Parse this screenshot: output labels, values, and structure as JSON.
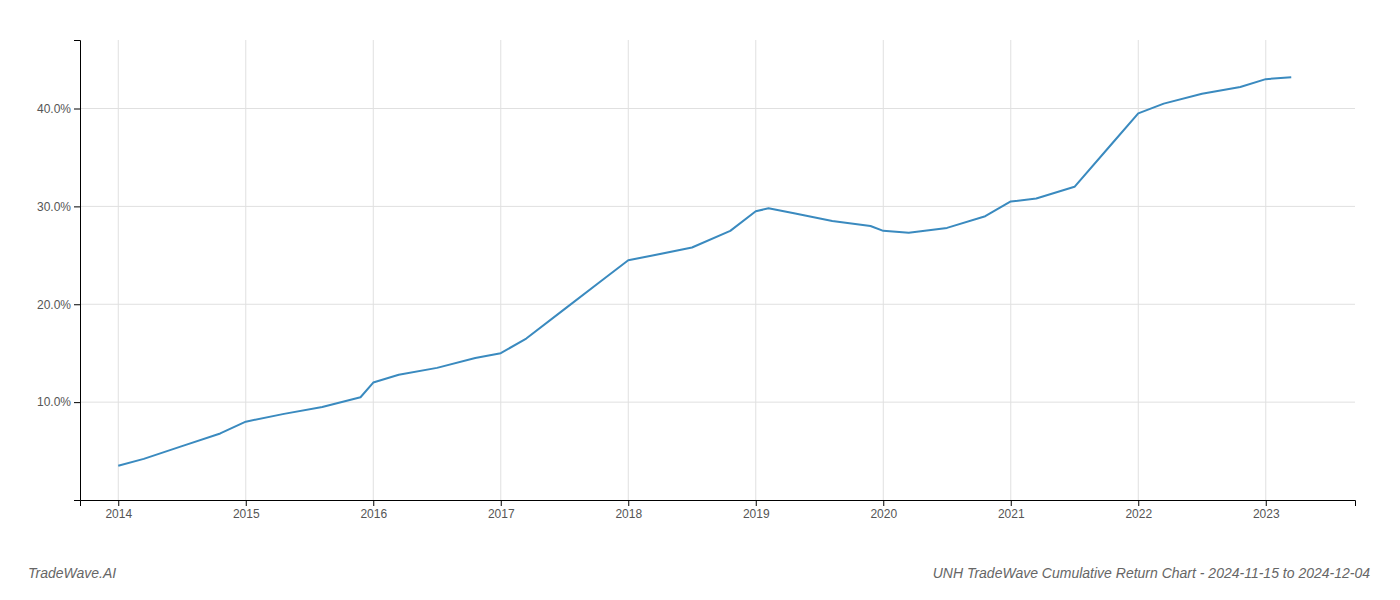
{
  "chart_data": {
    "type": "line",
    "title": "UNH TradeWave Cumulative Return Chart - 2024-11-15 to 2024-12-04",
    "annotations": [
      "TradeWave.AI"
    ],
    "x": [
      2014.0,
      2014.2,
      2014.5,
      2014.8,
      2015.0,
      2015.3,
      2015.6,
      2015.9,
      2016.0,
      2016.2,
      2016.5,
      2016.8,
      2017.0,
      2017.2,
      2017.5,
      2017.8,
      2018.0,
      2018.2,
      2018.5,
      2018.8,
      2019.0,
      2019.1,
      2019.3,
      2019.6,
      2019.9,
      2020.0,
      2020.2,
      2020.5,
      2020.8,
      2021.0,
      2021.2,
      2021.5,
      2021.8,
      2022.0,
      2022.2,
      2022.5,
      2022.8,
      2023.0,
      2023.2
    ],
    "values": [
      3.5,
      4.2,
      5.5,
      6.8,
      8.0,
      8.8,
      9.5,
      10.5,
      12.0,
      12.8,
      13.5,
      14.5,
      15.0,
      16.5,
      19.5,
      22.5,
      24.5,
      25.0,
      25.8,
      27.5,
      29.5,
      29.8,
      29.3,
      28.5,
      28.0,
      27.5,
      27.3,
      27.8,
      29.0,
      30.5,
      30.8,
      32.0,
      36.5,
      39.5,
      40.5,
      41.5,
      42.2,
      43.0,
      43.2
    ],
    "color": "#3a8abf",
    "xlim": [
      2013.7,
      2023.7
    ],
    "xticks": [
      2014,
      2015,
      2016,
      2017,
      2018,
      2019,
      2020,
      2021,
      2022,
      2023
    ],
    "ylim": [
      0,
      47
    ],
    "yticks": [
      {
        "value": 10.0,
        "label": "10.0%"
      },
      {
        "value": 20.0,
        "label": "20.0%"
      },
      {
        "value": 30.0,
        "label": "30.0%"
      },
      {
        "value": 40.0,
        "label": "40.0%"
      }
    ],
    "grid": true
  }
}
